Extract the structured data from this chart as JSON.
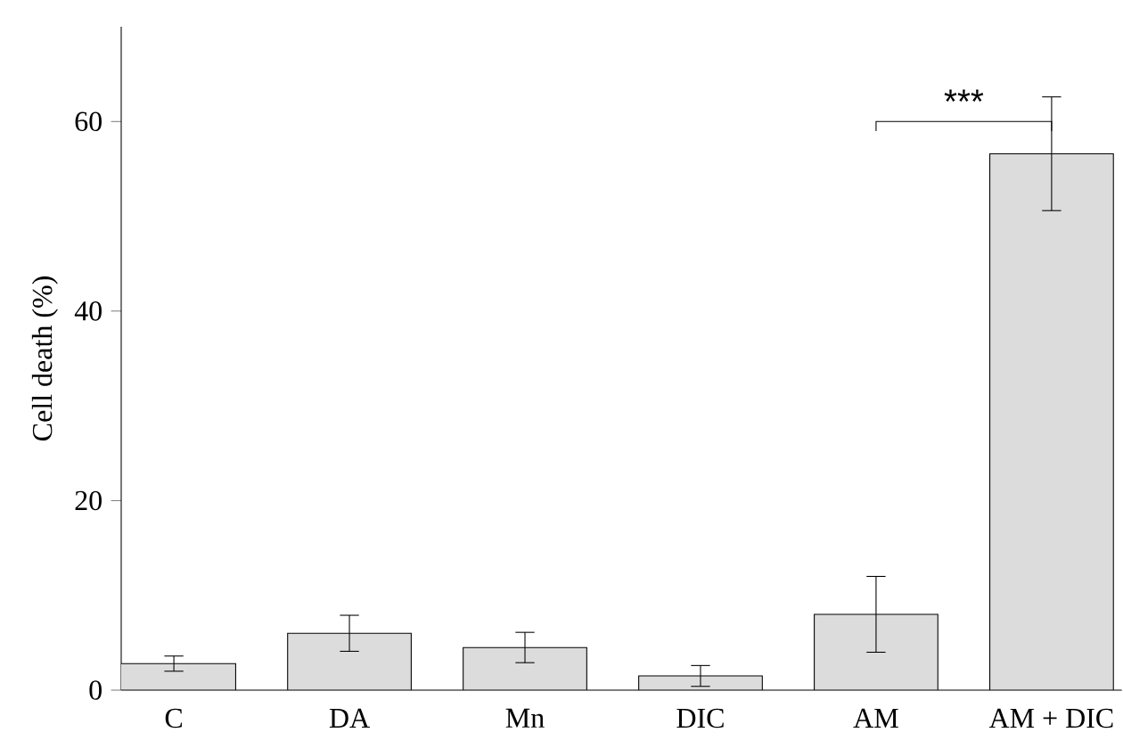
{
  "chart_data": {
    "type": "bar",
    "categories": [
      "C",
      "DA",
      "Mn",
      "DIC",
      "AM",
      "AM + DIC"
    ],
    "values": [
      2.8,
      6.0,
      4.5,
      1.5,
      8.0,
      56.6
    ],
    "errors": [
      0.8,
      1.9,
      1.6,
      1.1,
      4.0,
      6.0
    ],
    "color": "#dcdcdc",
    "ylabel": "Cell death (%)",
    "ylim": [
      0,
      70
    ],
    "yticks": [
      0,
      20,
      40,
      60
    ],
    "annotations": [
      "***"
    ]
  }
}
